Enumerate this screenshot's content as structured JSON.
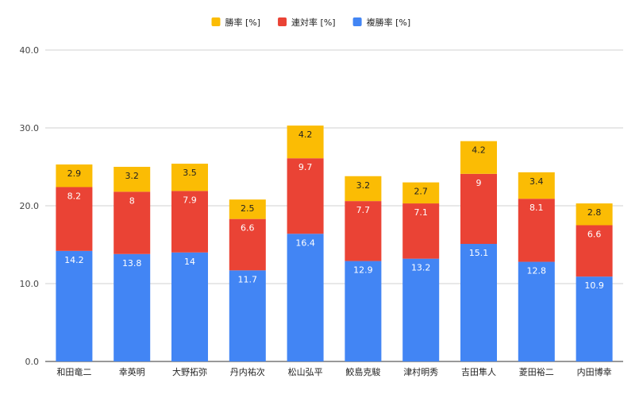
{
  "chart_data": {
    "type": "bar",
    "stacked": true,
    "title": "",
    "xlabel": "",
    "ylabel": "",
    "ylim": [
      0,
      40
    ],
    "yticks": [
      "0.0",
      "10.0",
      "20.0",
      "30.0",
      "40.0"
    ],
    "grid": true,
    "legend_position": "top-center",
    "categories": [
      "和田竜二",
      "幸英明",
      "大野拓弥",
      "丹内祐次",
      "松山弘平",
      "鮫島克駿",
      "津村明秀",
      "吉田隼人",
      "菱田裕二",
      "内田博幸"
    ],
    "series": [
      {
        "name": "複勝率 [%]",
        "color": "#4285f4",
        "label_color": "#ffffff",
        "values": [
          14.2,
          13.8,
          14.0,
          11.7,
          16.4,
          12.9,
          13.2,
          15.1,
          12.8,
          10.9
        ]
      },
      {
        "name": "連対率 [%]",
        "color": "#ea4335",
        "label_color": "#ffffff",
        "values": [
          8.2,
          8.0,
          7.9,
          6.6,
          9.7,
          7.7,
          7.1,
          9.0,
          8.1,
          6.6
        ]
      },
      {
        "name": "勝率 [%]",
        "color": "#fbbc04",
        "label_color": "#222222",
        "values": [
          2.9,
          3.2,
          3.5,
          2.5,
          4.2,
          3.2,
          2.7,
          4.2,
          3.4,
          2.8
        ]
      }
    ],
    "legend_order": [
      2,
      1,
      0
    ]
  }
}
